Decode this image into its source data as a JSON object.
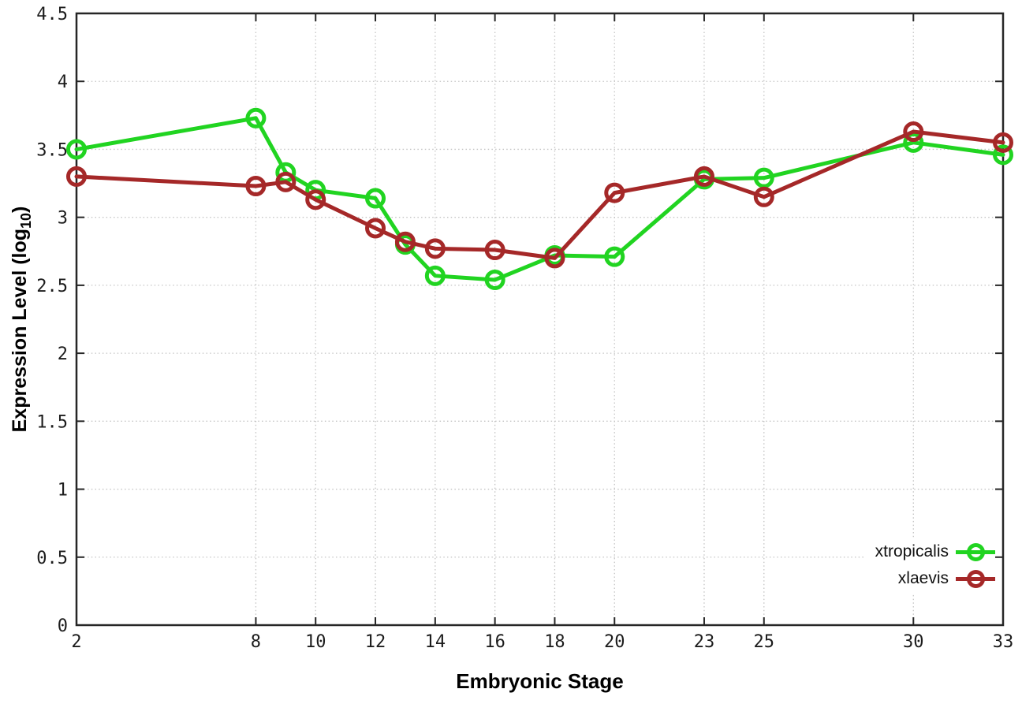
{
  "chart_data": {
    "type": "line",
    "title": "",
    "xlabel": "Embryonic Stage",
    "ylabel": "Expression Level (log10)",
    "ylabel_parts": {
      "pre": "Expression Level (log",
      "sub": "10",
      "post": ")"
    },
    "x": [
      2,
      8,
      9,
      10,
      12,
      13,
      14,
      16,
      18,
      20,
      23,
      25,
      30,
      33
    ],
    "series": [
      {
        "name": "xtropicalis",
        "color": "#21d421",
        "values": [
          3.5,
          3.73,
          3.33,
          3.2,
          3.14,
          2.8,
          2.57,
          2.54,
          2.72,
          2.71,
          3.28,
          3.29,
          3.55,
          3.46
        ]
      },
      {
        "name": "xlaevis",
        "color": "#a52828",
        "values": [
          3.3,
          3.23,
          3.26,
          3.13,
          2.92,
          2.82,
          2.77,
          2.76,
          2.7,
          3.18,
          3.3,
          3.15,
          3.63,
          3.55
        ]
      }
    ],
    "x_ticks": [
      2,
      8,
      10,
      12,
      14,
      16,
      18,
      20,
      23,
      25,
      30,
      33
    ],
    "y_ticks": [
      0,
      0.5,
      1,
      1.5,
      2,
      2.5,
      3,
      3.5,
      4,
      4.5
    ],
    "xlim": [
      2,
      33
    ],
    "ylim": [
      0,
      4.5
    ],
    "grid": true,
    "grid_style": "dotted",
    "grid_color": "#c4c4c4",
    "axis_color": "#262626",
    "tick_label_color": "#1c1c1c",
    "legend_position": "bottom-right"
  }
}
